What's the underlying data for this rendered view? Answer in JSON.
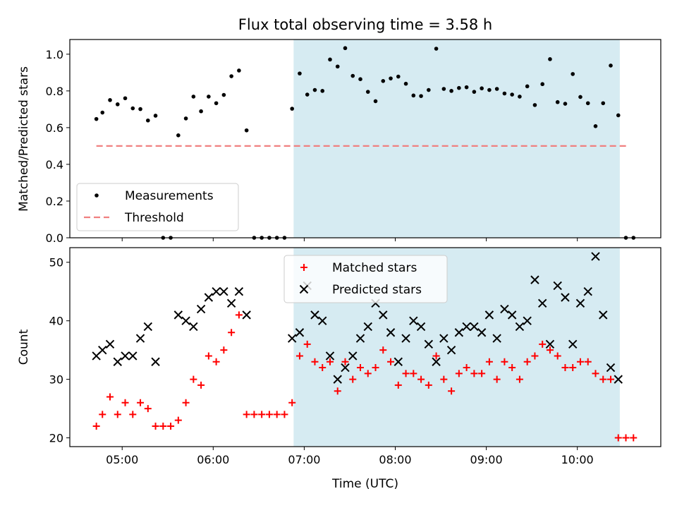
{
  "chart_data": {
    "title": "Flux total observing time = 3.58 h",
    "xlabel": "Time (UTC)",
    "x_ticks": [
      "05:00",
      "06:00",
      "07:00",
      "08:00",
      "09:00",
      "10:00"
    ],
    "shaded_span": {
      "from": "06:53",
      "to": "10:28",
      "color": "#add8e6"
    },
    "colors": {
      "measurements": "#000000",
      "threshold": "#f08080",
      "matched": "#ff0000",
      "predicted": "#000000",
      "shade": "#add8e6"
    },
    "panels": [
      {
        "type": "scatter",
        "ylabel": "Matched/Predicted stars",
        "ylim": [
          0,
          1.08
        ],
        "y_ticks": [
          "0.0",
          "0.2",
          "0.4",
          "0.6",
          "0.8",
          "1.0"
        ],
        "legend_position": "lower-left",
        "series": [
          {
            "name": "Measurements",
            "marker": "dot",
            "points": [
              [
                "04:43",
                0.647
              ],
              [
                "04:47",
                0.682
              ],
              [
                "04:52",
                0.75
              ],
              [
                "04:57",
                0.727
              ],
              [
                "05:02",
                0.76
              ],
              [
                "05:07",
                0.705
              ],
              [
                "05:12",
                0.701
              ],
              [
                "05:17",
                0.639
              ],
              [
                "05:22",
                0.665
              ],
              [
                "05:27",
                0.0
              ],
              [
                "05:32",
                0.0
              ],
              [
                "05:37",
                0.558
              ],
              [
                "05:42",
                0.65
              ],
              [
                "05:47",
                0.769
              ],
              [
                "05:52",
                0.689
              ],
              [
                "05:57",
                0.769
              ],
              [
                "06:02",
                0.733
              ],
              [
                "06:07",
                0.778
              ],
              [
                "06:12",
                0.88
              ],
              [
                "06:17",
                0.911
              ],
              [
                "06:22",
                0.585
              ],
              [
                "06:27",
                0.0
              ],
              [
                "06:32",
                0.0
              ],
              [
                "06:37",
                0.0
              ],
              [
                "06:42",
                0.0
              ],
              [
                "06:47",
                0.0
              ],
              [
                "06:52",
                0.703
              ],
              [
                "06:57",
                0.895
              ],
              [
                "07:02",
                0.78
              ],
              [
                "07:07",
                0.805
              ],
              [
                "07:12",
                0.8
              ],
              [
                "07:17",
                0.971
              ],
              [
                "07:22",
                0.933
              ],
              [
                "07:27",
                1.033
              ],
              [
                "07:32",
                0.882
              ],
              [
                "07:37",
                0.864
              ],
              [
                "07:42",
                0.795
              ],
              [
                "07:47",
                0.744
              ],
              [
                "07:52",
                0.854
              ],
              [
                "07:57",
                0.868
              ],
              [
                "08:02",
                0.878
              ],
              [
                "08:07",
                0.839
              ],
              [
                "08:12",
                0.775
              ],
              [
                "08:17",
                0.772
              ],
              [
                "08:22",
                0.805
              ],
              [
                "08:27",
                1.03
              ],
              [
                "08:32",
                0.811
              ],
              [
                "08:37",
                0.8
              ],
              [
                "08:42",
                0.816
              ],
              [
                "08:47",
                0.82
              ],
              [
                "08:52",
                0.795
              ],
              [
                "08:57",
                0.814
              ],
              [
                "09:02",
                0.805
              ],
              [
                "09:07",
                0.811
              ],
              [
                "09:12",
                0.786
              ],
              [
                "09:17",
                0.78
              ],
              [
                "09:22",
                0.769
              ],
              [
                "09:27",
                0.825
              ],
              [
                "09:32",
                0.723
              ],
              [
                "09:37",
                0.837
              ],
              [
                "09:42",
                0.973
              ],
              [
                "09:47",
                0.739
              ],
              [
                "09:52",
                0.73
              ],
              [
                "09:57",
                0.892
              ],
              [
                "10:02",
                0.767
              ],
              [
                "10:07",
                0.733
              ],
              [
                "10:12",
                0.608
              ],
              [
                "10:17",
                0.733
              ],
              [
                "10:22",
                0.938
              ],
              [
                "10:27",
                0.667
              ],
              [
                "10:32",
                0.0
              ],
              [
                "10:37",
                0.0
              ]
            ]
          },
          {
            "name": "Threshold",
            "marker": "dashed-line",
            "points": [
              [
                "04:43",
                0.5
              ],
              [
                "10:33",
                0.5
              ]
            ]
          }
        ]
      },
      {
        "type": "scatter",
        "ylabel": "Count",
        "ylim": [
          18.5,
          52.5
        ],
        "y_ticks": [
          "20",
          "30",
          "40",
          "50"
        ],
        "legend_position": "upper-center",
        "series": [
          {
            "name": "Matched stars",
            "marker": "plus",
            "points": [
              [
                "04:43",
                22
              ],
              [
                "04:47",
                24
              ],
              [
                "04:52",
                27
              ],
              [
                "04:57",
                24
              ],
              [
                "05:02",
                26
              ],
              [
                "05:07",
                24
              ],
              [
                "05:12",
                26
              ],
              [
                "05:17",
                25
              ],
              [
                "05:22",
                22
              ],
              [
                "05:27",
                22
              ],
              [
                "05:32",
                22
              ],
              [
                "05:37",
                23
              ],
              [
                "05:42",
                26
              ],
              [
                "05:47",
                30
              ],
              [
                "05:52",
                29
              ],
              [
                "05:57",
                34
              ],
              [
                "06:02",
                33
              ],
              [
                "06:07",
                35
              ],
              [
                "06:12",
                38
              ],
              [
                "06:17",
                41
              ],
              [
                "06:22",
                24
              ],
              [
                "06:27",
                24
              ],
              [
                "06:32",
                24
              ],
              [
                "06:37",
                24
              ],
              [
                "06:42",
                24
              ],
              [
                "06:47",
                24
              ],
              [
                "06:52",
                26
              ],
              [
                "06:57",
                34
              ],
              [
                "07:02",
                36
              ],
              [
                "07:07",
                33
              ],
              [
                "07:12",
                32
              ],
              [
                "07:17",
                33
              ],
              [
                "07:22",
                28
              ],
              [
                "07:27",
                33
              ],
              [
                "07:32",
                30
              ],
              [
                "07:37",
                32
              ],
              [
                "07:42",
                31
              ],
              [
                "07:47",
                32
              ],
              [
                "07:52",
                35
              ],
              [
                "07:57",
                33
              ],
              [
                "08:02",
                29
              ],
              [
                "08:07",
                31
              ],
              [
                "08:12",
                31
              ],
              [
                "08:17",
                30
              ],
              [
                "08:22",
                29
              ],
              [
                "08:27",
                34
              ],
              [
                "08:32",
                30
              ],
              [
                "08:37",
                28
              ],
              [
                "08:42",
                31
              ],
              [
                "08:47",
                32
              ],
              [
                "08:52",
                31
              ],
              [
                "08:57",
                31
              ],
              [
                "09:02",
                33
              ],
              [
                "09:07",
                30
              ],
              [
                "09:12",
                33
              ],
              [
                "09:17",
                32
              ],
              [
                "09:22",
                30
              ],
              [
                "09:27",
                33
              ],
              [
                "09:32",
                34
              ],
              [
                "09:37",
                36
              ],
              [
                "09:42",
                35
              ],
              [
                "09:47",
                34
              ],
              [
                "09:52",
                32
              ],
              [
                "09:57",
                32
              ],
              [
                "10:02",
                33
              ],
              [
                "10:07",
                33
              ],
              [
                "10:12",
                31
              ],
              [
                "10:17",
                30
              ],
              [
                "10:22",
                30
              ],
              [
                "10:27",
                20
              ],
              [
                "10:32",
                20
              ],
              [
                "10:37",
                20
              ]
            ]
          },
          {
            "name": "Predicted stars",
            "marker": "x",
            "points": [
              [
                "04:43",
                34
              ],
              [
                "04:47",
                35
              ],
              [
                "04:52",
                36
              ],
              [
                "04:57",
                33
              ],
              [
                "05:02",
                34
              ],
              [
                "05:07",
                34
              ],
              [
                "05:12",
                37
              ],
              [
                "05:17",
                39
              ],
              [
                "05:22",
                33
              ],
              [
                "05:37",
                41
              ],
              [
                "05:42",
                40
              ],
              [
                "05:47",
                39
              ],
              [
                "05:52",
                42
              ],
              [
                "05:57",
                44
              ],
              [
                "06:02",
                45
              ],
              [
                "06:07",
                45
              ],
              [
                "06:12",
                43
              ],
              [
                "06:17",
                45
              ],
              [
                "06:22",
                41
              ],
              [
                "06:52",
                37
              ],
              [
                "06:57",
                38
              ],
              [
                "07:02",
                46
              ],
              [
                "07:07",
                41
              ],
              [
                "07:12",
                40
              ],
              [
                "07:17",
                34
              ],
              [
                "07:22",
                30
              ],
              [
                "07:27",
                32
              ],
              [
                "07:32",
                34
              ],
              [
                "07:37",
                37
              ],
              [
                "07:42",
                39
              ],
              [
                "07:47",
                43
              ],
              [
                "07:52",
                41
              ],
              [
                "07:57",
                38
              ],
              [
                "08:02",
                33
              ],
              [
                "08:07",
                37
              ],
              [
                "08:12",
                40
              ],
              [
                "08:17",
                39
              ],
              [
                "08:22",
                36
              ],
              [
                "08:27",
                33
              ],
              [
                "08:32",
                37
              ],
              [
                "08:37",
                35
              ],
              [
                "08:42",
                38
              ],
              [
                "08:47",
                39
              ],
              [
                "08:52",
                39
              ],
              [
                "08:57",
                38
              ],
              [
                "09:02",
                41
              ],
              [
                "09:07",
                37
              ],
              [
                "09:12",
                42
              ],
              [
                "09:17",
                41
              ],
              [
                "09:22",
                39
              ],
              [
                "09:27",
                40
              ],
              [
                "09:32",
                47
              ],
              [
                "09:37",
                43
              ],
              [
                "09:42",
                36
              ],
              [
                "09:47",
                46
              ],
              [
                "09:52",
                44
              ],
              [
                "09:57",
                36
              ],
              [
                "10:02",
                43
              ],
              [
                "10:07",
                45
              ],
              [
                "10:12",
                51
              ],
              [
                "10:17",
                41
              ],
              [
                "10:22",
                32
              ],
              [
                "10:27",
                30
              ]
            ]
          }
        ]
      }
    ]
  }
}
